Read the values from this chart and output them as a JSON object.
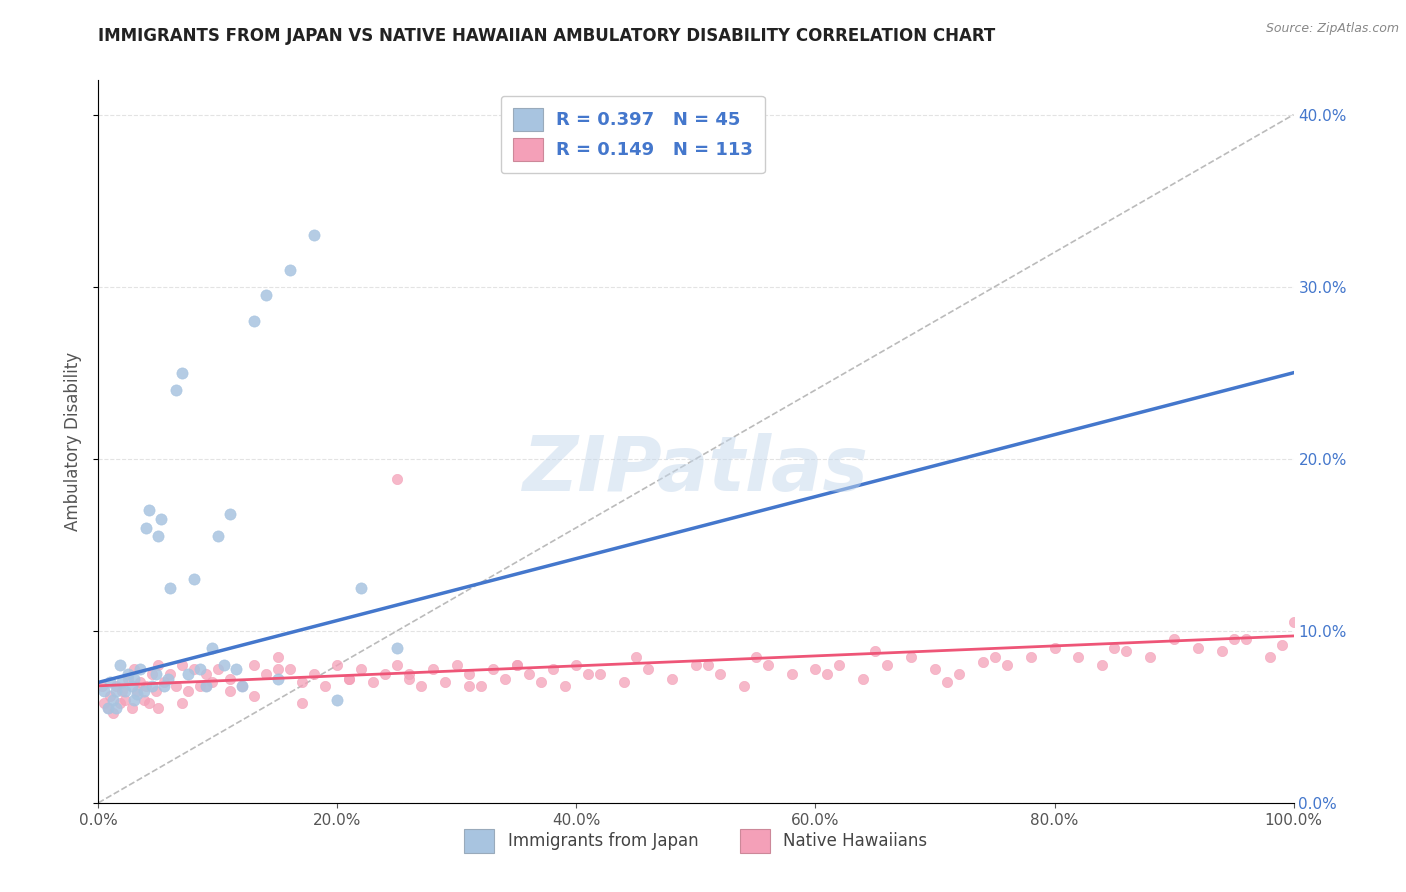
{
  "title": "IMMIGRANTS FROM JAPAN VS NATIVE HAWAIIAN AMBULATORY DISABILITY CORRELATION CHART",
  "source": "Source: ZipAtlas.com",
  "xlabel_blue": "Immigrants from Japan",
  "xlabel_pink": "Native Hawaiians",
  "ylabel": "Ambulatory Disability",
  "watermark": "ZIPatlas",
  "blue_R": 0.397,
  "blue_N": 45,
  "pink_R": 0.149,
  "pink_N": 113,
  "blue_color": "#a8c4e0",
  "pink_color": "#f4a0b8",
  "blue_line_color": "#4477cc",
  "pink_line_color": "#ee5577",
  "title_color": "#222222",
  "axis_label_color": "#555555",
  "right_tick_color": "#4477cc",
  "legend_text_color": "#4477cc",
  "xlim": [
    0.0,
    1.0
  ],
  "ylim": [
    0.0,
    0.42
  ],
  "blue_scatter_x": [
    0.005,
    0.008,
    0.01,
    0.012,
    0.015,
    0.015,
    0.018,
    0.02,
    0.022,
    0.025,
    0.028,
    0.03,
    0.03,
    0.032,
    0.035,
    0.038,
    0.04,
    0.042,
    0.045,
    0.048,
    0.05,
    0.052,
    0.055,
    0.058,
    0.06,
    0.065,
    0.07,
    0.075,
    0.08,
    0.085,
    0.09,
    0.095,
    0.1,
    0.105,
    0.11,
    0.115,
    0.12,
    0.13,
    0.14,
    0.15,
    0.16,
    0.18,
    0.2,
    0.22,
    0.25
  ],
  "blue_scatter_y": [
    0.065,
    0.055,
    0.07,
    0.06,
    0.065,
    0.055,
    0.08,
    0.07,
    0.065,
    0.075,
    0.068,
    0.06,
    0.072,
    0.063,
    0.078,
    0.065,
    0.16,
    0.17,
    0.068,
    0.075,
    0.155,
    0.165,
    0.068,
    0.072,
    0.125,
    0.24,
    0.25,
    0.075,
    0.13,
    0.078,
    0.068,
    0.09,
    0.155,
    0.08,
    0.168,
    0.078,
    0.068,
    0.28,
    0.295,
    0.072,
    0.31,
    0.33,
    0.06,
    0.125,
    0.09
  ],
  "pink_scatter_x": [
    0.003,
    0.005,
    0.008,
    0.01,
    0.012,
    0.015,
    0.018,
    0.02,
    0.022,
    0.025,
    0.028,
    0.03,
    0.032,
    0.035,
    0.038,
    0.04,
    0.042,
    0.045,
    0.048,
    0.05,
    0.055,
    0.06,
    0.065,
    0.07,
    0.075,
    0.08,
    0.085,
    0.09,
    0.095,
    0.1,
    0.11,
    0.12,
    0.13,
    0.14,
    0.15,
    0.16,
    0.17,
    0.18,
    0.19,
    0.2,
    0.21,
    0.22,
    0.23,
    0.24,
    0.25,
    0.26,
    0.27,
    0.28,
    0.29,
    0.3,
    0.31,
    0.32,
    0.33,
    0.34,
    0.35,
    0.36,
    0.37,
    0.38,
    0.39,
    0.4,
    0.42,
    0.44,
    0.46,
    0.48,
    0.5,
    0.52,
    0.54,
    0.56,
    0.58,
    0.6,
    0.62,
    0.64,
    0.66,
    0.68,
    0.7,
    0.72,
    0.74,
    0.76,
    0.78,
    0.8,
    0.82,
    0.84,
    0.86,
    0.88,
    0.9,
    0.92,
    0.94,
    0.96,
    0.98,
    0.99,
    1.0,
    0.55,
    0.65,
    0.75,
    0.85,
    0.95,
    0.45,
    0.35,
    0.25,
    0.15,
    0.05,
    0.07,
    0.09,
    0.11,
    0.13,
    0.17,
    0.21,
    0.26,
    0.31,
    0.41,
    0.51,
    0.61,
    0.71
  ],
  "pink_scatter_y": [
    0.068,
    0.058,
    0.055,
    0.062,
    0.052,
    0.068,
    0.058,
    0.065,
    0.06,
    0.072,
    0.055,
    0.078,
    0.065,
    0.07,
    0.06,
    0.068,
    0.058,
    0.075,
    0.065,
    0.08,
    0.07,
    0.075,
    0.068,
    0.08,
    0.065,
    0.078,
    0.068,
    0.075,
    0.07,
    0.078,
    0.072,
    0.068,
    0.08,
    0.075,
    0.085,
    0.078,
    0.07,
    0.075,
    0.068,
    0.08,
    0.072,
    0.078,
    0.07,
    0.075,
    0.08,
    0.072,
    0.068,
    0.078,
    0.07,
    0.08,
    0.075,
    0.068,
    0.078,
    0.072,
    0.08,
    0.075,
    0.07,
    0.078,
    0.068,
    0.08,
    0.075,
    0.07,
    0.078,
    0.072,
    0.08,
    0.075,
    0.068,
    0.08,
    0.075,
    0.078,
    0.08,
    0.072,
    0.08,
    0.085,
    0.078,
    0.075,
    0.082,
    0.08,
    0.085,
    0.09,
    0.085,
    0.08,
    0.088,
    0.085,
    0.095,
    0.09,
    0.088,
    0.095,
    0.085,
    0.092,
    0.105,
    0.085,
    0.088,
    0.085,
    0.09,
    0.095,
    0.085,
    0.08,
    0.188,
    0.078,
    0.055,
    0.058,
    0.068,
    0.065,
    0.062,
    0.058,
    0.072,
    0.075,
    0.068,
    0.075,
    0.08,
    0.075,
    0.07
  ],
  "bg_color": "#ffffff",
  "grid_color": "#e0e0e0",
  "yticks": [
    0.0,
    0.1,
    0.2,
    0.3,
    0.4
  ],
  "xticks": [
    0.0,
    0.2,
    0.4,
    0.6,
    0.8,
    1.0
  ]
}
